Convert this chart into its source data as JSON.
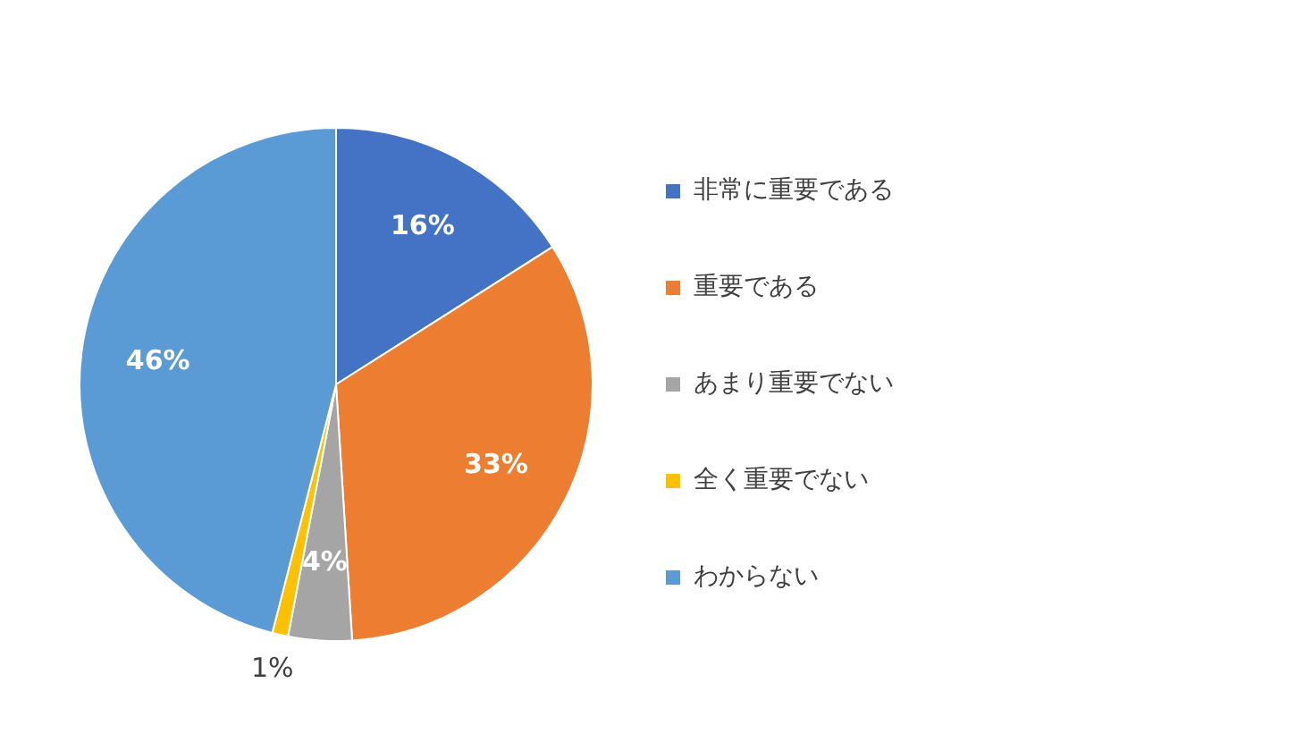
{
  "chart_data": {
    "type": "pie",
    "categories": [
      "非常に重要である",
      "重要である",
      "あまり重要でない",
      "全く重要でない",
      "わからない"
    ],
    "values": [
      16,
      33,
      4,
      1,
      46
    ],
    "colors": [
      "#4472c4",
      "#ed7d31",
      "#a5a5a5",
      "#ffc000",
      "#5b9bd5"
    ],
    "value_labels": [
      "16%",
      "33%",
      "4%",
      "1%",
      "46%"
    ],
    "legend": "right"
  }
}
